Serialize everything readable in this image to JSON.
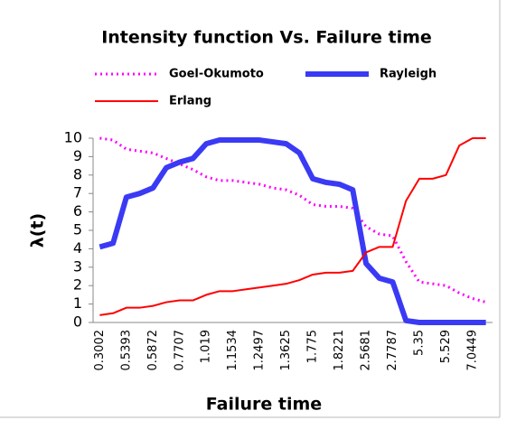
{
  "chart_data": {
    "type": "line",
    "title": "Intensity function  Vs. Failure time",
    "x_label": "Failure time",
    "y_label": "λ(t)",
    "categories": [
      "0.3002",
      null,
      "0.5393",
      null,
      "0.5872",
      null,
      "0.7707",
      null,
      "1.019",
      null,
      "1.1534",
      null,
      "1.2497",
      null,
      "1.3625",
      null,
      "1.775",
      null,
      "1.8221",
      null,
      "2.5681",
      null,
      "2.7787",
      null,
      "5.35",
      null,
      "5.529",
      null,
      "7.0449",
      null
    ],
    "ylim": [
      0,
      10
    ],
    "yticks": [
      0,
      1,
      2,
      3,
      4,
      5,
      6,
      7,
      8,
      9,
      10
    ],
    "grid": false,
    "legend": "top",
    "series": [
      {
        "name": "Goel-Okumoto",
        "color": "#ff00ff",
        "style": "dotted",
        "width": 3,
        "values": [
          10,
          9.9,
          9.4,
          9.3,
          9.2,
          8.9,
          8.6,
          8.3,
          7.9,
          7.7,
          7.7,
          7.6,
          7.5,
          7.3,
          7.2,
          6.9,
          6.4,
          6.3,
          6.3,
          6.2,
          5.2,
          4.8,
          4.7,
          3.3,
          2.2,
          2.1,
          2.0,
          1.6,
          1.3,
          1.1
        ]
      },
      {
        "name": "Rayleigh",
        "color": "#3a3af5",
        "style": "solid",
        "width": 6,
        "values": [
          4.1,
          4.3,
          6.8,
          7.0,
          7.3,
          8.4,
          8.7,
          8.9,
          9.7,
          9.9,
          9.9,
          9.9,
          9.9,
          9.8,
          9.7,
          9.2,
          7.8,
          7.6,
          7.5,
          7.2,
          3.2,
          2.4,
          2.2,
          0.1,
          0,
          0,
          0,
          0,
          0,
          0
        ]
      },
      {
        "name": "Erlang",
        "color": "#ff0000",
        "style": "solid",
        "width": 2,
        "values": [
          0.4,
          0.5,
          0.8,
          0.8,
          0.9,
          1.1,
          1.2,
          1.2,
          1.5,
          1.7,
          1.7,
          1.8,
          1.9,
          2.0,
          2.1,
          2.3,
          2.6,
          2.7,
          2.7,
          2.8,
          3.8,
          4.1,
          4.1,
          6.6,
          7.8,
          7.8,
          8.0,
          9.6,
          10,
          10
        ]
      }
    ]
  }
}
